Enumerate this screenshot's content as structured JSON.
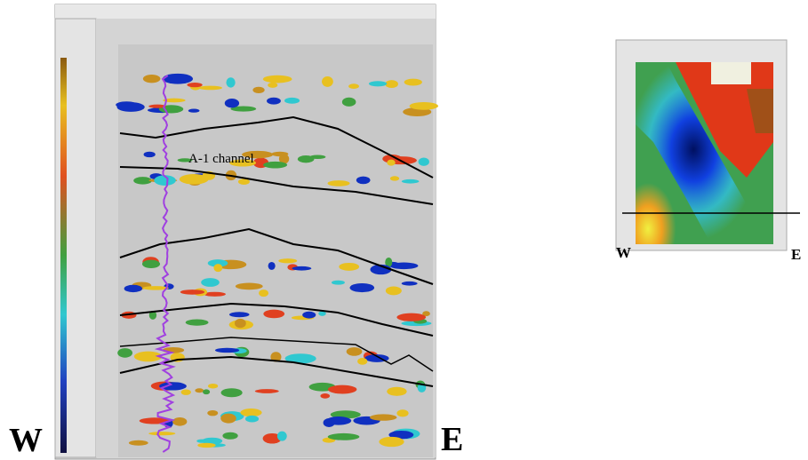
{
  "left_panel": {
    "annotation": "A-1 channel",
    "west_label": "W",
    "east_label": "E"
  },
  "right_panel": {
    "west_label": "W",
    "east_label": "E"
  }
}
